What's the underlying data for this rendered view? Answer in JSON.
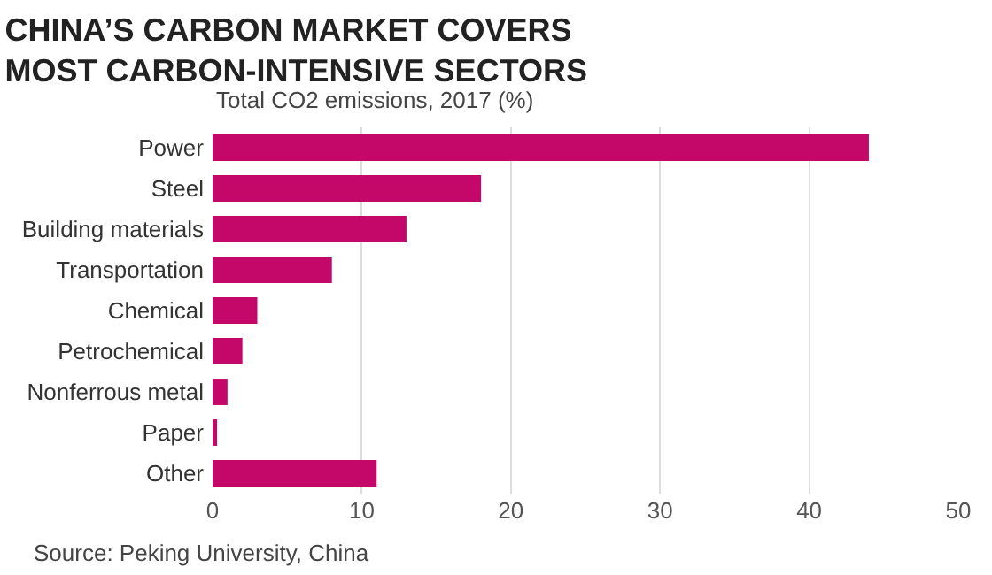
{
  "chart_data": {
    "type": "bar",
    "orientation": "horizontal",
    "title": "CHINA’S CARBON MARKET COVERS\nMOST CARBON-INTENSIVE SECTORS",
    "subtitle": "Total CO2 emissions, 2017 (%)",
    "categories": [
      "Power",
      "Steel",
      "Building materials",
      "Transportation",
      "Chemical",
      "Petrochemical",
      "Nonferrous metal",
      "Paper",
      "Other"
    ],
    "values": [
      44,
      18,
      13,
      8,
      3,
      2,
      1,
      0.3,
      11
    ],
    "color": "#c4086a",
    "xlim": [
      0,
      50
    ],
    "xticks": [
      0,
      10,
      20,
      30,
      40,
      50
    ],
    "grid": "x",
    "legend": false,
    "annotations": [
      "Source: Peking University, China"
    ]
  }
}
